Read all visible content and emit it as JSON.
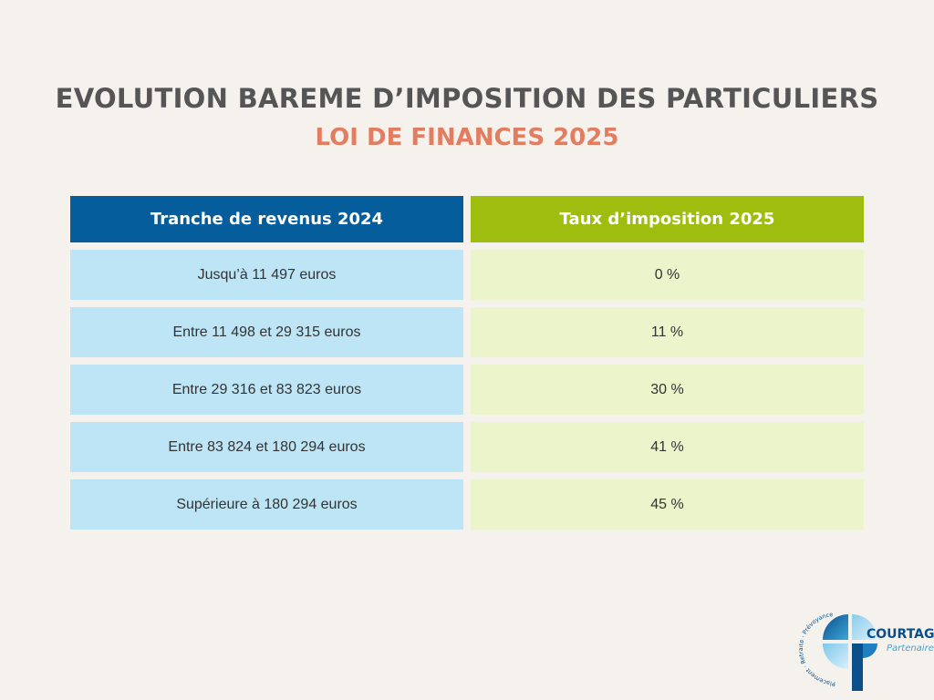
{
  "title": "EVOLUTION BAREME D’IMPOSITION DES PARTICULIERS",
  "subtitle": "LOI DE FINANCES 2025",
  "table": {
    "headers": [
      "Tranche de revenus 2024",
      "Taux d’imposition 2025"
    ],
    "rows": [
      [
        "Jusqu’à 11 497 euros",
        "0 %"
      ],
      [
        "Entre 11 498 et 29 315 euros",
        "11 %"
      ],
      [
        "Entre 29 316 et 83 823 euros",
        "30 %"
      ],
      [
        "Entre 83 824 et 180 294 euros",
        "41 %"
      ],
      [
        "Supérieure à 180 294 euros",
        "45 %"
      ]
    ]
  },
  "logo": {
    "name": "COURTAGE",
    "tagline": "Partenaire",
    "arc_text": "Placement · Retraite · Prévoyance"
  },
  "colors": {
    "background": "#f5f2ee",
    "title": "#555555",
    "subtitle": "#e27d60",
    "header_left": "#055d9c",
    "header_right": "#9fbd0e",
    "cell_left": "#bde5f5",
    "cell_right": "#ecf4cb"
  }
}
